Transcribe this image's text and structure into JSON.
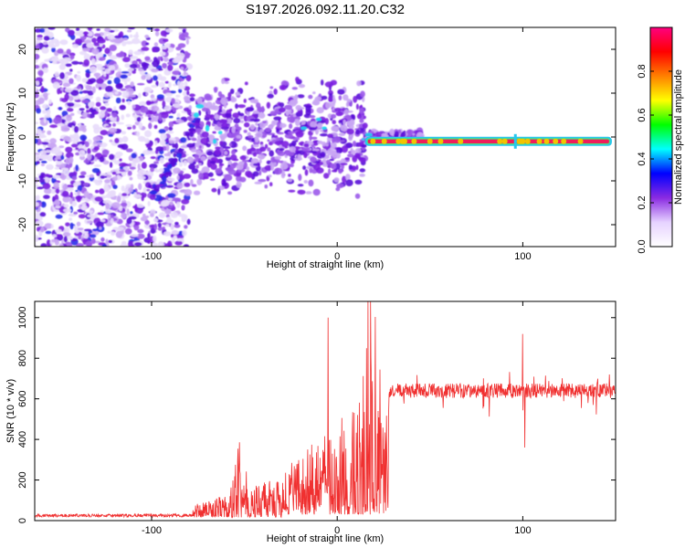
{
  "title": "S197.2026.092.11.20.C32",
  "chart_data": [
    {
      "type": "heatmap",
      "name": "spectrogram",
      "xlabel": "Height of straight line (km)",
      "ylabel": "Frequency (Hz)",
      "xlim": [
        -163,
        150
      ],
      "ylim": [
        -25,
        25
      ],
      "xticks": [
        -100,
        0,
        100
      ],
      "xtick_labels": [
        "-100",
        "0",
        "100"
      ],
      "yticks": [
        -20,
        -10,
        0,
        10,
        20
      ],
      "ytick_labels": [
        "-20",
        "-10",
        "0",
        "10",
        "20"
      ],
      "colorbar": {
        "label": "Normalized spectral amplitude",
        "range": [
          0,
          1
        ],
        "ticks": [
          0.0,
          0.2,
          0.4,
          0.6,
          0.8
        ],
        "tick_labels": [
          "0.0",
          "0.2",
          "0.4",
          "0.6",
          "0.8"
        ],
        "colors": [
          "#ffffff",
          "#e6d2ff",
          "#8a2be2",
          "#0000ff",
          "#00ffff",
          "#00ff00",
          "#ffff00",
          "#ff8000",
          "#ff0000",
          "#ff0080"
        ]
      },
      "features": {
        "steady_line": {
          "x_start": 15,
          "x_end": 148,
          "frequency": -1,
          "amplitude": 0.95
        },
        "scattered_region_x": [
          -163,
          45
        ],
        "dense_noise_x": [
          -163,
          -80
        ]
      }
    },
    {
      "type": "line",
      "name": "snr",
      "xlabel": "Height of straight line (km)",
      "ylabel": "SNR (10 * v/v)",
      "xlim": [
        -163,
        150
      ],
      "ylim": [
        0,
        1080
      ],
      "xticks": [
        -100,
        0,
        100
      ],
      "xtick_labels": [
        "-100",
        "0",
        "100"
      ],
      "yticks": [
        0,
        200,
        400,
        600,
        800,
        1000
      ],
      "ytick_labels": [
        "0",
        "200",
        "400",
        "600",
        "800",
        "1000"
      ],
      "color": "#f03030",
      "segments": [
        {
          "x_range": [
            -163,
            -78
          ],
          "baseline": 25,
          "noise": 15
        },
        {
          "x_range": [
            -78,
            -30
          ],
          "baseline": 80,
          "noise": 200,
          "peak": {
            "x": -52,
            "value": 420
          }
        },
        {
          "x_range": [
            -30,
            28
          ],
          "baseline": 150,
          "noise": 700,
          "peak": {
            "x": 18,
            "value": 1080
          }
        },
        {
          "x_range": [
            28,
            150
          ],
          "baseline": 640,
          "noise": 60
        }
      ],
      "notable_points": [
        {
          "x": -5,
          "value": 1000
        },
        {
          "x": 18,
          "value": 1080
        },
        {
          "x": 100,
          "value": 920
        },
        {
          "x": 101,
          "value": 360
        }
      ]
    }
  ]
}
